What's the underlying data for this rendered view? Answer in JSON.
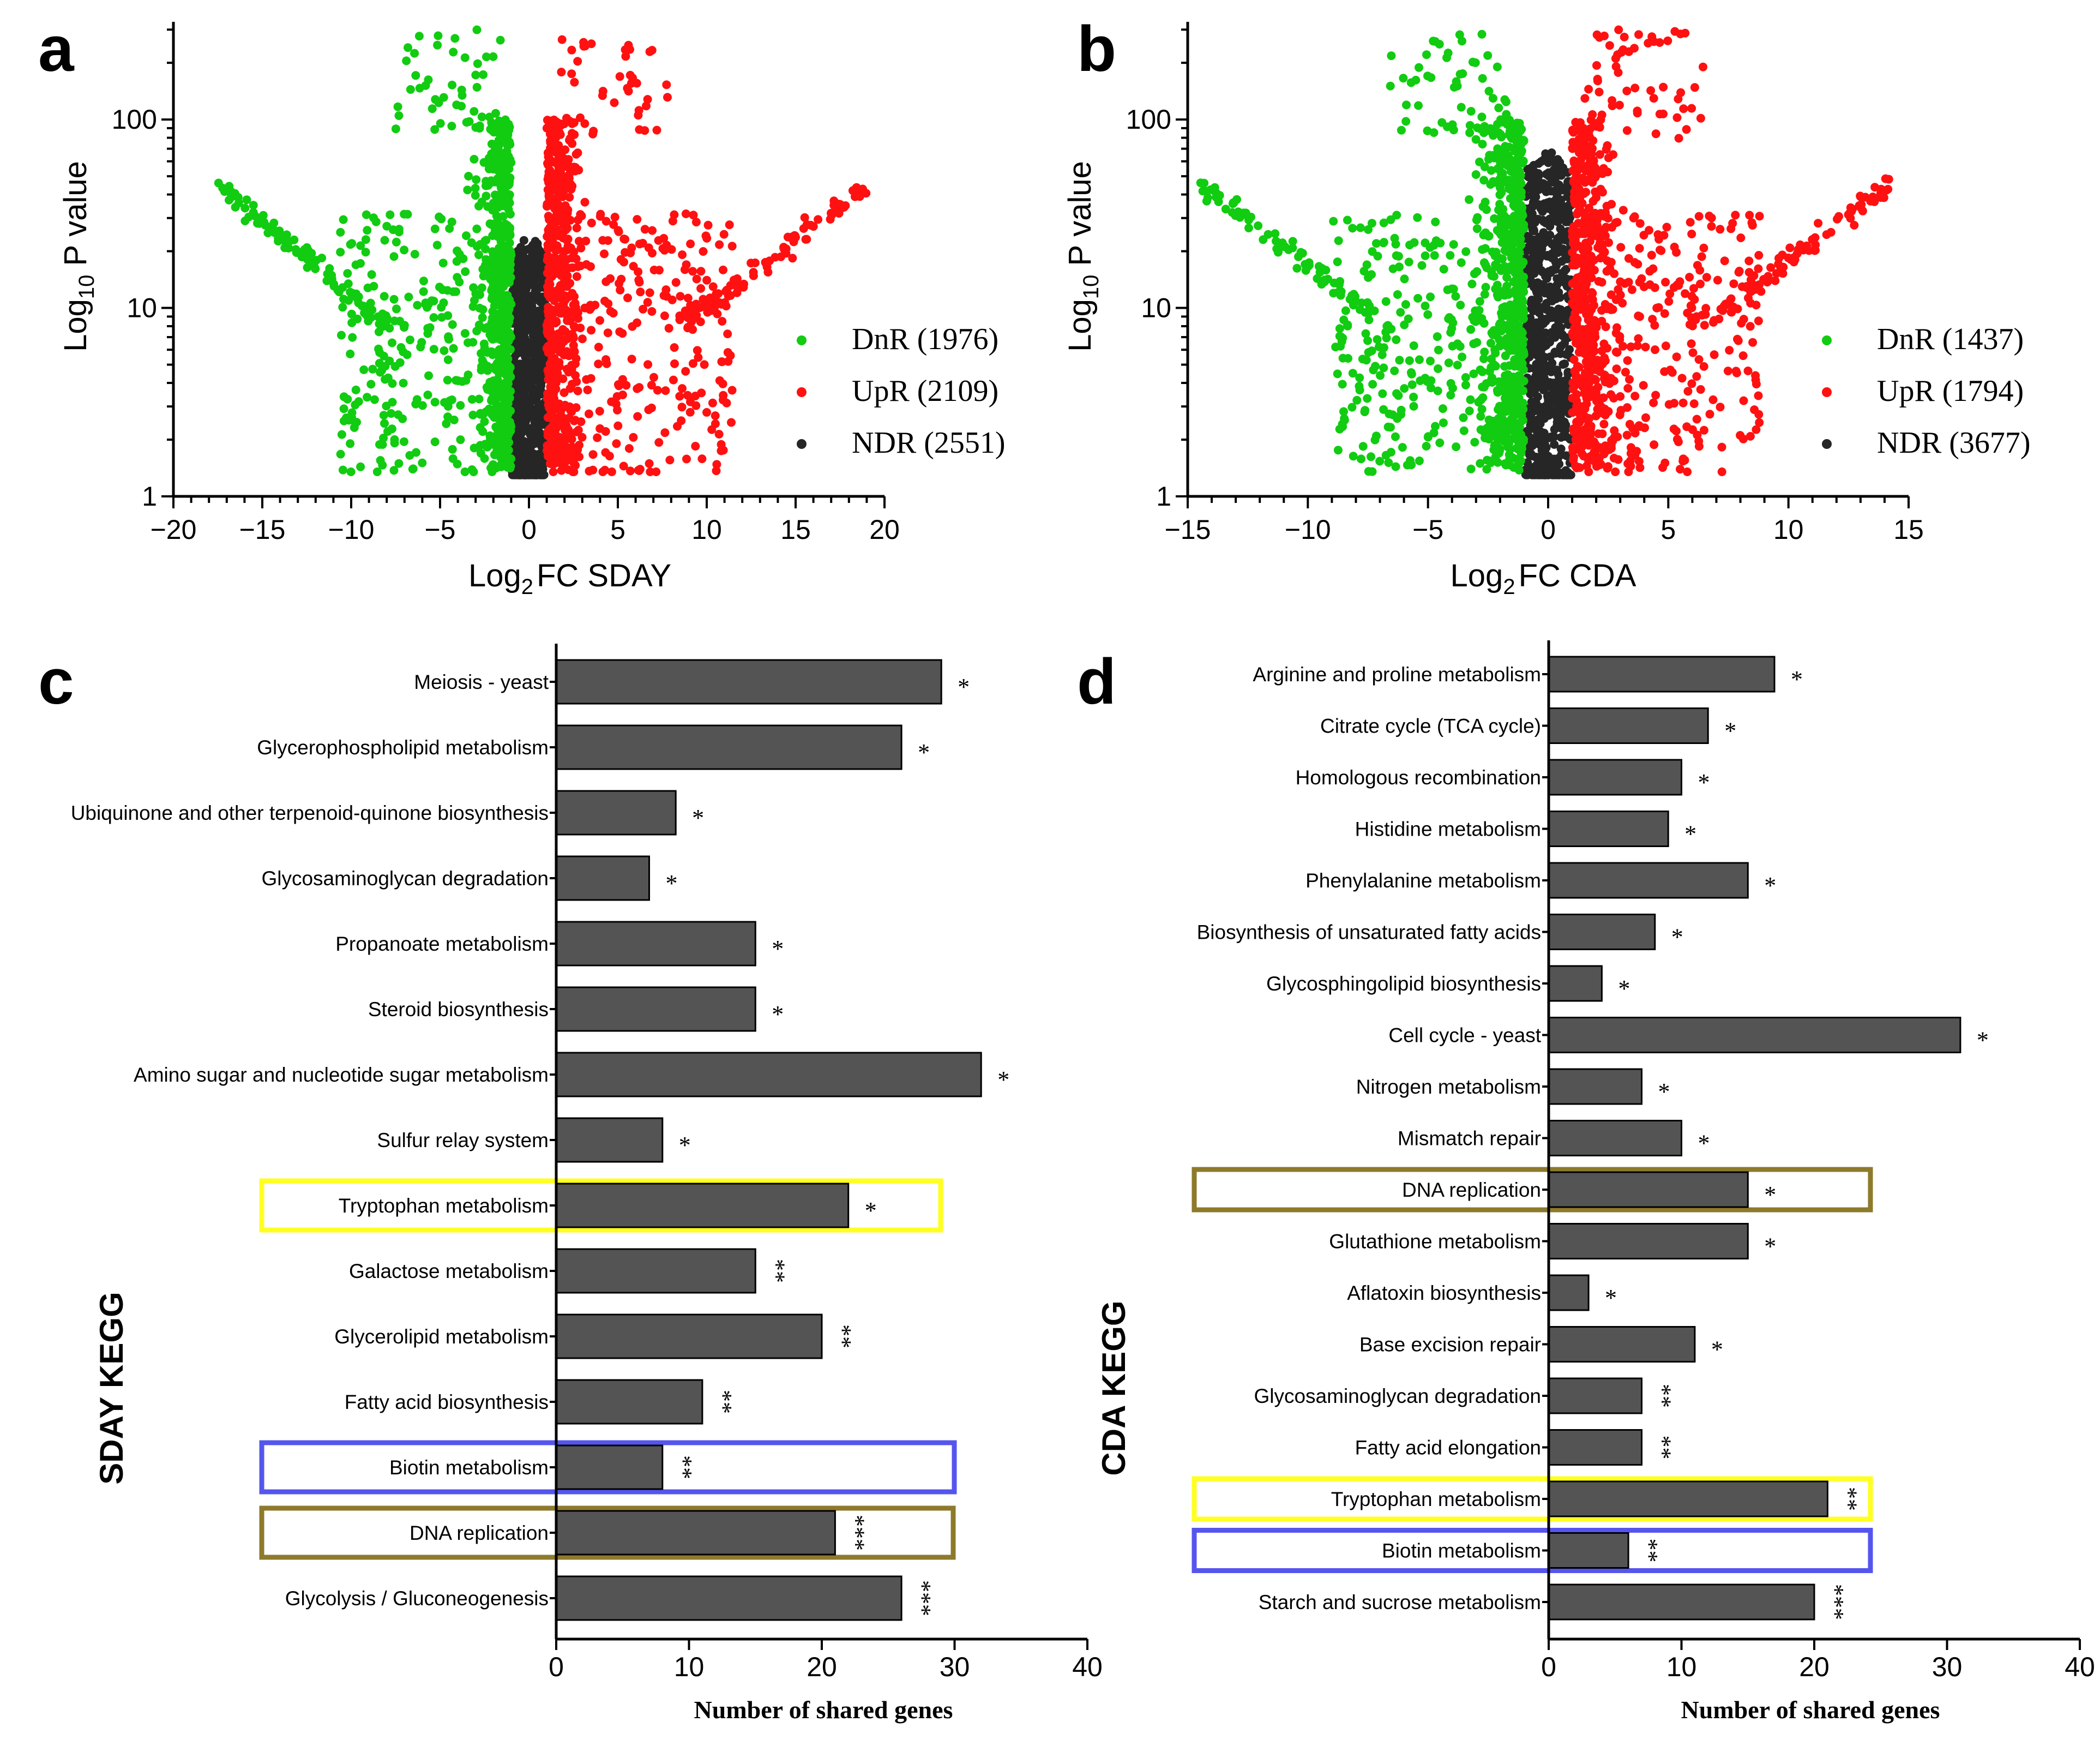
{
  "figure": {
    "panel_labels": [
      "a",
      "b",
      "c",
      "d"
    ]
  },
  "colors": {
    "down": "#11cc11",
    "up": "#ff1111",
    "ndr": "#262626",
    "bar_fill": "#545454",
    "box_yellow": "#ffff22",
    "box_blue": "#5555ee",
    "box_olive": "#8d7a2b"
  },
  "chart_data": [
    {
      "panel": "a",
      "type": "scatter",
      "xlabel_main": "Log",
      "xlabel_sub": "2",
      "xlabel_rest": "FC SDAY",
      "ylabel_main": "Log",
      "ylabel_sub": "10",
      "ylabel_rest": " P value",
      "xlim": [
        -20,
        20
      ],
      "xticks": [
        -20,
        -15,
        -10,
        -5,
        0,
        5,
        10,
        15,
        20
      ],
      "xtick_labels": [
        "−20",
        "−15",
        "−10",
        "−5",
        "0",
        "5",
        "10",
        "15",
        "20"
      ],
      "yscale": "log",
      "ylim": [
        1,
        330
      ],
      "yticks": [
        1,
        10,
        100
      ],
      "ytick_labels": [
        "1",
        "10",
        "100"
      ],
      "legend": [
        {
          "label": "DnR (1976)",
          "color": "#11cc11"
        },
        {
          "label": "UpR (2109)",
          "color": "#ff1111"
        },
        {
          "label": "NDR (2551)",
          "color": "#262626"
        }
      ],
      "series": [
        {
          "name": "DnR",
          "count": 1976,
          "x_range": [
            -17.5,
            -0.9
          ],
          "y_max": 300
        },
        {
          "name": "UpR",
          "count": 2109,
          "x_range": [
            0.9,
            19
          ],
          "y_max": 290
        },
        {
          "name": "NDR",
          "count": 2551,
          "x_range": [
            -1,
            1
          ],
          "y_max": 25
        }
      ]
    },
    {
      "panel": "b",
      "type": "scatter",
      "xlabel_main": "Log",
      "xlabel_sub": "2",
      "xlabel_rest": "FC CDA",
      "ylabel_main": "Log",
      "ylabel_sub": "10",
      "ylabel_rest": " P value",
      "xlim": [
        -15,
        15
      ],
      "xticks": [
        -15,
        -10,
        -5,
        0,
        5,
        10,
        15
      ],
      "xtick_labels": [
        "−15",
        "−10",
        "−5",
        "0",
        "5",
        "10",
        "15"
      ],
      "yscale": "log",
      "ylim": [
        1,
        330
      ],
      "yticks": [
        1,
        10,
        100
      ],
      "ytick_labels": [
        "1",
        "10",
        "100"
      ],
      "legend": [
        {
          "label": "DnR (1437)",
          "color": "#11cc11"
        },
        {
          "label": "UpR (1794)",
          "color": "#ff1111"
        },
        {
          "label": "NDR (3677)",
          "color": "#262626"
        }
      ],
      "series": [
        {
          "name": "DnR",
          "count": 1437,
          "x_range": [
            -14.5,
            -0.9
          ],
          "y_max": 300
        },
        {
          "name": "UpR",
          "count": 1794,
          "x_range": [
            0.9,
            14.2
          ],
          "y_max": 300
        },
        {
          "name": "NDR",
          "count": 3677,
          "x_range": [
            -1,
            1
          ],
          "y_max": 70
        }
      ]
    },
    {
      "panel": "c",
      "type": "bar",
      "orientation": "horizontal",
      "title": "SDAY KEGG",
      "xlabel": "Number of shared genes",
      "xlim": [
        0,
        40
      ],
      "xticks": [
        0,
        10,
        20,
        30,
        40
      ],
      "categories": [
        "Meiosis - yeast",
        "Glycerophospholipid metabolism",
        "Ubiquinone and other terpenoid-quinone biosynthesis",
        "Glycosaminoglycan degradation",
        "Propanoate metabolism",
        "Steroid biosynthesis",
        "Amino sugar and nucleotide sugar metabolism",
        "Sulfur relay system",
        "Tryptophan metabolism",
        "Galactose metabolism",
        "Glycerolipid metabolism",
        "Fatty acid biosynthesis",
        "Biotin metabolism",
        "DNA replication",
        "Glycolysis / Gluconeogenesis"
      ],
      "values": [
        29,
        26,
        9,
        7,
        15,
        15,
        32,
        8,
        22,
        15,
        20,
        11,
        8,
        21,
        26
      ],
      "significance": [
        "*",
        "*",
        "*",
        "*",
        "*",
        "*",
        "*",
        "*",
        "*",
        "**",
        "**",
        "**",
        "**",
        "***",
        "***"
      ],
      "highlights": {
        "Tryptophan metabolism": "#ffff22",
        "Biotin metabolism": "#5555ee",
        "DNA replication": "#8d7a2b"
      }
    },
    {
      "panel": "d",
      "type": "bar",
      "orientation": "horizontal",
      "title": "CDA KEGG",
      "xlabel": "Number of shared genes",
      "xlim": [
        0,
        40
      ],
      "xticks": [
        0,
        10,
        20,
        30,
        40
      ],
      "categories": [
        "Arginine and proline metabolism",
        "Citrate cycle (TCA cycle)",
        "Homologous recombination",
        "Histidine metabolism",
        "Phenylalanine metabolism",
        "Biosynthesis of unsaturated fatty acids",
        "Glycosphingolipid biosynthesis",
        "Cell cycle - yeast",
        "Nitrogen metabolism",
        "Mismatch repair",
        "DNA replication",
        "Glutathione metabolism",
        "Aflatoxin biosynthesis",
        "Base excision repair",
        "Glycosaminoglycan degradation",
        "Fatty acid elongation",
        "Tryptophan metabolism",
        "Biotin metabolism",
        "Starch and sucrose metabolism"
      ],
      "values": [
        17,
        12,
        10,
        9,
        15,
        8,
        4,
        31,
        7,
        10,
        15,
        15,
        3,
        11,
        7,
        7,
        21,
        6,
        20
      ],
      "significance": [
        "*",
        "*",
        "*",
        "*",
        "*",
        "*",
        "*",
        "*",
        "*",
        "*",
        "*",
        "*",
        "*",
        "*",
        "**",
        "**",
        "**",
        "**",
        "***"
      ],
      "highlights": {
        "DNA replication": "#8d7a2b",
        "Tryptophan metabolism": "#ffff22",
        "Biotin metabolism": "#5555ee"
      }
    }
  ]
}
